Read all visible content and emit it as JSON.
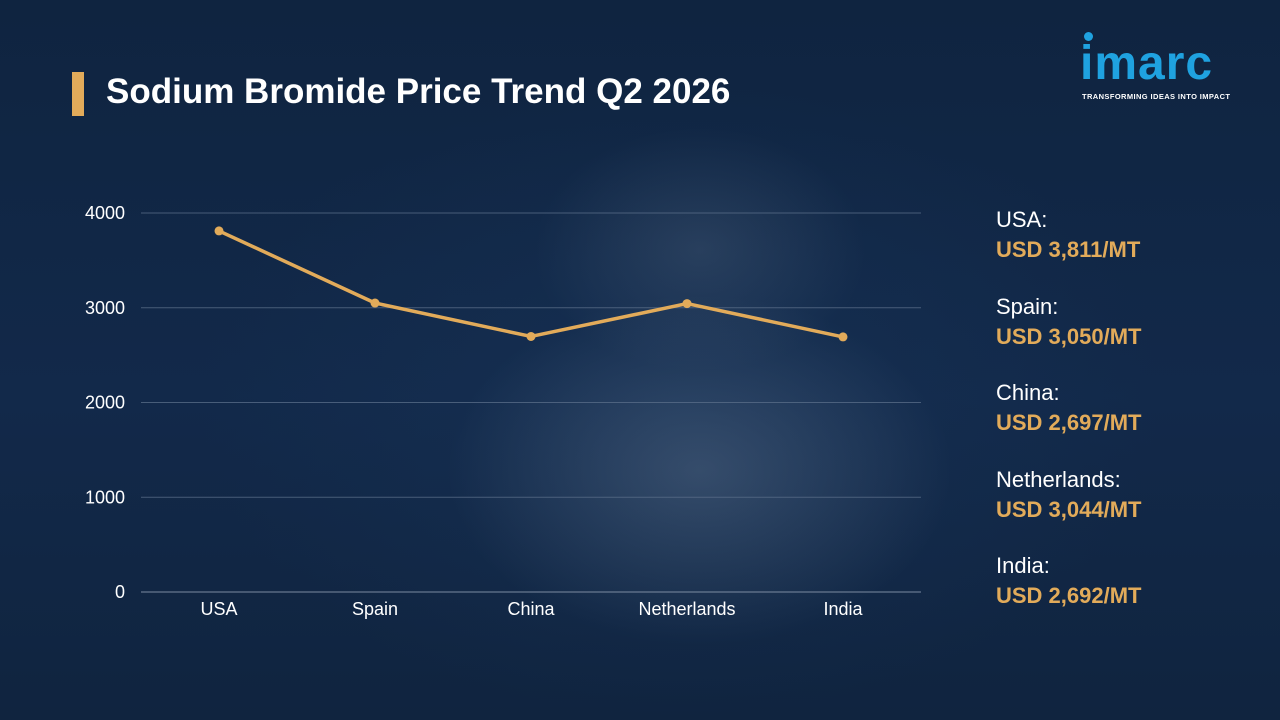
{
  "header": {
    "title": "Sodium Bromide Price Trend Q2 2026"
  },
  "logo": {
    "name": "imarc",
    "tagline": "TRANSFORMING IDEAS INTO IMPACT",
    "color": "#1fa2e0"
  },
  "colors": {
    "accent": "#e2ab5a",
    "background": "#0f2440",
    "grid": "#5b6f8a",
    "text": "#ffffff"
  },
  "chart_data": {
    "type": "line",
    "categories": [
      "USA",
      "Spain",
      "China",
      "Netherlands",
      "India"
    ],
    "series": [
      {
        "values": [
          3811,
          3050,
          2697,
          3044,
          2692
        ]
      }
    ],
    "ylim": [
      0,
      4000
    ],
    "yticks": [
      0,
      1000,
      2000,
      3000,
      4000
    ],
    "grid": true,
    "legend": "none"
  },
  "price_list": [
    {
      "country": "USA:",
      "price": "USD 3,811/MT"
    },
    {
      "country": "Spain:",
      "price": "USD 3,050/MT"
    },
    {
      "country": "China:",
      "price": "USD 2,697/MT"
    },
    {
      "country": "Netherlands:",
      "price": "USD 3,044/MT"
    },
    {
      "country": "India:",
      "price": "USD 2,692/MT"
    }
  ]
}
